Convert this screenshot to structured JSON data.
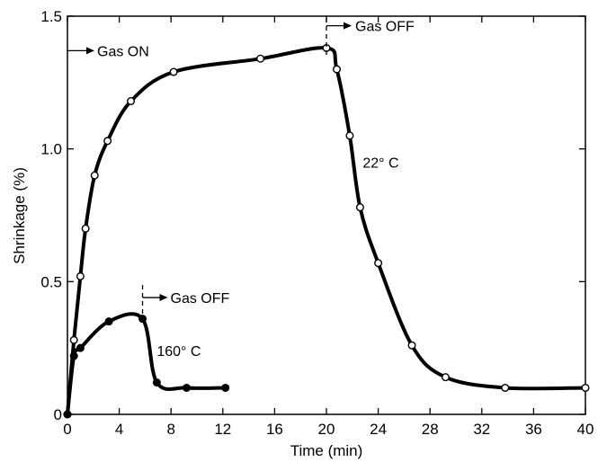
{
  "chart_data": {
    "type": "line",
    "xlabel": "Time (min)",
    "ylabel": "Shrinkage (%)",
    "xlim": [
      0,
      40
    ],
    "ylim": [
      0,
      1.5
    ],
    "x_ticks": [
      0,
      4,
      8,
      12,
      16,
      20,
      24,
      28,
      32,
      36,
      40
    ],
    "x_tick_labels": [
      "0",
      "4",
      "8",
      "12",
      "16",
      "20",
      "24",
      "28",
      "32",
      "36",
      "40"
    ],
    "y_ticks": [
      0,
      0.5,
      1.0,
      1.5
    ],
    "y_tick_labels": [
      "0",
      "0.5",
      "1.0",
      "1.5"
    ],
    "series": [
      {
        "name": "22° C",
        "marker": "open-circle",
        "x": [
          0,
          0.5,
          1.0,
          1.4,
          2.1,
          3.1,
          4.9,
          8.2,
          14.9,
          20.0,
          20.8,
          21.8,
          22.6,
          24.0,
          26.6,
          29.2,
          33.8,
          40.0
        ],
        "y": [
          0.0,
          0.28,
          0.52,
          0.7,
          0.9,
          1.03,
          1.18,
          1.29,
          1.34,
          1.38,
          1.3,
          1.05,
          0.78,
          0.57,
          0.26,
          0.14,
          0.1,
          0.1
        ]
      },
      {
        "name": "160° C",
        "marker": "filled-circle",
        "x": [
          0,
          0.5,
          1.0,
          3.2,
          5.8,
          6.9,
          9.2,
          12.2
        ],
        "y": [
          0.0,
          0.22,
          0.25,
          0.35,
          0.36,
          0.12,
          0.1,
          0.1
        ]
      }
    ],
    "annotations": [
      {
        "text": "Gas ON",
        "x": 0,
        "y": 1.37
      },
      {
        "text": "Gas OFF",
        "x": 20,
        "y": 1.42
      },
      {
        "text": "Gas OFF",
        "x": 5.8,
        "y": 0.44
      },
      {
        "text": "22° C",
        "x": 22.8,
        "y": 0.93
      },
      {
        "text": "160° C",
        "x": 6.9,
        "y": 0.22
      }
    ],
    "grid": false
  }
}
